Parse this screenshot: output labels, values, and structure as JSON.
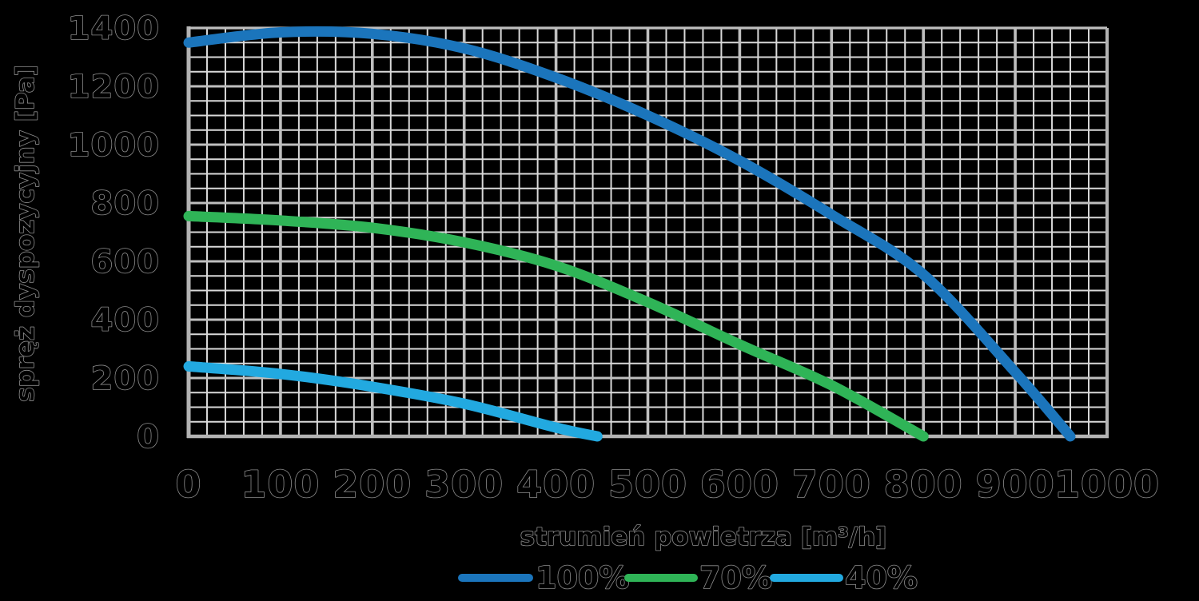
{
  "chart_data": {
    "type": "line",
    "title": "",
    "xlabel": "strumień powietrza [m³/h]",
    "ylabel": "spręż dyspozycyjny [Pa]",
    "xlim": [
      0,
      1000
    ],
    "ylim": [
      0,
      1400
    ],
    "x_ticks": [
      0,
      100,
      200,
      300,
      400,
      500,
      600,
      700,
      800,
      900,
      1000
    ],
    "y_ticks": [
      0,
      200,
      400,
      600,
      800,
      1000,
      1200,
      1400
    ],
    "x_minor_step": 20,
    "y_minor_step": 50,
    "grid": true,
    "legend_position": "bottom",
    "series": [
      {
        "name": "100%",
        "color": "#1b75bc",
        "points": [
          [
            0,
            1350
          ],
          [
            100,
            1385
          ],
          [
            200,
            1380
          ],
          [
            300,
            1330
          ],
          [
            400,
            1230
          ],
          [
            500,
            1100
          ],
          [
            600,
            945
          ],
          [
            700,
            760
          ],
          [
            800,
            555
          ],
          [
            900,
            220
          ],
          [
            960,
            0
          ]
        ]
      },
      {
        "name": "70%",
        "color": "#2fb457",
        "points": [
          [
            0,
            755
          ],
          [
            100,
            740
          ],
          [
            200,
            715
          ],
          [
            300,
            665
          ],
          [
            400,
            585
          ],
          [
            500,
            460
          ],
          [
            600,
            315
          ],
          [
            700,
            175
          ],
          [
            800,
            0
          ]
        ]
      },
      {
        "name": "40%",
        "color": "#22a9e0",
        "points": [
          [
            0,
            240
          ],
          [
            100,
            214
          ],
          [
            200,
            170
          ],
          [
            300,
            112
          ],
          [
            400,
            30
          ],
          [
            445,
            0
          ]
        ]
      }
    ],
    "colors": {
      "background": "#000000",
      "grid_minor": "#d9d9d9",
      "grid_major": "#bfbfbf",
      "axis_border": "#b3b3b3",
      "text": "#000000",
      "text_outline": "#8c8c8c"
    }
  }
}
